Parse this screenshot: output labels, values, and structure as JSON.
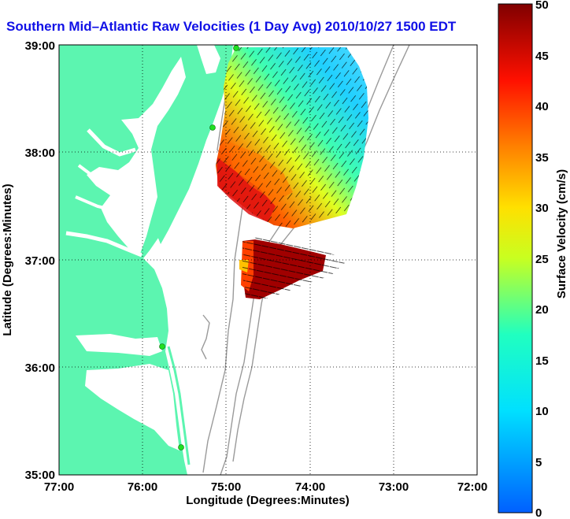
{
  "title": "Southern Mid–Atlantic Raw Velocities (1 Day Avg) 2010/10/27 1500 EDT",
  "map": {
    "xlabel": "Longitude (Degrees:Minutes)",
    "ylabel": "Latitude (Degrees:Minutes)",
    "x_ticks": [
      "77:00",
      "76:00",
      "75:00",
      "74:00",
      "73:00",
      "72:00"
    ],
    "y_ticks": [
      "39:00",
      "38:00",
      "37:00",
      "36:00",
      "35:00"
    ],
    "xlim": [
      -77,
      -72
    ],
    "ylim": [
      35,
      39
    ],
    "grid": "dotted",
    "land_color": "#5cf5b0",
    "water_color": "#ffffff"
  },
  "colorbar": {
    "label": "Surface Velocity (cm/s)",
    "ticks": [
      "50",
      "45",
      "40",
      "35",
      "30",
      "25",
      "20",
      "15",
      "10",
      "5",
      "0"
    ],
    "range": [
      0,
      50
    ]
  }
}
